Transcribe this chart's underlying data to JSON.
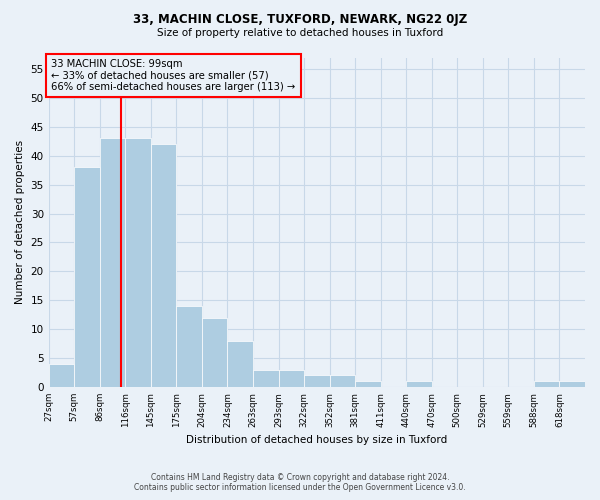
{
  "title1": "33, MACHIN CLOSE, TUXFORD, NEWARK, NG22 0JZ",
  "title2": "Size of property relative to detached houses in Tuxford",
  "xlabel": "Distribution of detached houses by size in Tuxford",
  "ylabel": "Number of detached properties",
  "footer1": "Contains HM Land Registry data © Crown copyright and database right 2024.",
  "footer2": "Contains public sector information licensed under the Open Government Licence v3.0.",
  "categories": [
    "27sqm",
    "57sqm",
    "86sqm",
    "116sqm",
    "145sqm",
    "175sqm",
    "204sqm",
    "234sqm",
    "263sqm",
    "293sqm",
    "322sqm",
    "352sqm",
    "381sqm",
    "411sqm",
    "440sqm",
    "470sqm",
    "500sqm",
    "529sqm",
    "559sqm",
    "588sqm",
    "618sqm"
  ],
  "values": [
    4,
    38,
    43,
    43,
    42,
    14,
    12,
    8,
    3,
    3,
    2,
    2,
    1,
    0,
    1,
    0,
    0,
    0,
    0,
    1,
    1
  ],
  "bar_color": "#aecde1",
  "bar_edge_color": "white",
  "grid_color": "#c8d8e8",
  "bg_color": "#eaf1f8",
  "property_line_index": 2.85,
  "annotation_line1": "33 MACHIN CLOSE: 99sqm",
  "annotation_line2": "← 33% of detached houses are smaller (57)",
  "annotation_line3": "66% of semi-detached houses are larger (113) →",
  "annotation_box_color": "red",
  "property_line_color": "red",
  "ylim_max": 57,
  "yticks": [
    0,
    5,
    10,
    15,
    20,
    25,
    30,
    35,
    40,
    45,
    50,
    55
  ]
}
